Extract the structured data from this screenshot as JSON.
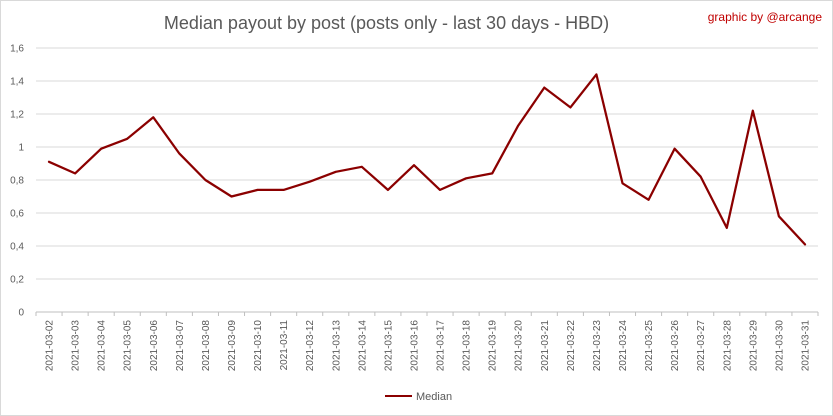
{
  "chart_data": {
    "type": "line",
    "title": "Median payout by post (posts only - last 30 days - HBD)",
    "credit": "graphic by @arcange",
    "xlabel": "",
    "ylabel": "",
    "ylim": [
      0,
      1.6
    ],
    "y_ticks": [
      "0",
      "0,2",
      "0,4",
      "0,6",
      "0,8",
      "1",
      "1,2",
      "1,4",
      "1,6"
    ],
    "grid": true,
    "legend_position": "bottom",
    "categories": [
      "2021-03-02",
      "2021-03-03",
      "2021-03-04",
      "2021-03-05",
      "2021-03-06",
      "2021-03-07",
      "2021-03-08",
      "2021-03-09",
      "2021-03-10",
      "2021-03-11",
      "2021-03-12",
      "2021-03-13",
      "2021-03-14",
      "2021-03-15",
      "2021-03-16",
      "2021-03-17",
      "2021-03-18",
      "2021-03-19",
      "2021-03-20",
      "2021-03-21",
      "2021-03-22",
      "2021-03-23",
      "2021-03-24",
      "2021-03-25",
      "2021-03-26",
      "2021-03-27",
      "2021-03-28",
      "2021-03-29",
      "2021-03-30",
      "2021-03-31"
    ],
    "series": [
      {
        "name": "Median",
        "color": "#8b0000",
        "values": [
          0.91,
          0.84,
          0.99,
          1.05,
          1.18,
          0.96,
          0.8,
          0.7,
          0.74,
          0.74,
          0.79,
          0.85,
          0.88,
          0.74,
          0.89,
          0.74,
          0.81,
          0.84,
          1.13,
          1.36,
          1.24,
          1.44,
          0.78,
          0.68,
          0.99,
          0.82,
          0.51,
          1.22,
          0.58,
          0.41
        ]
      }
    ]
  }
}
